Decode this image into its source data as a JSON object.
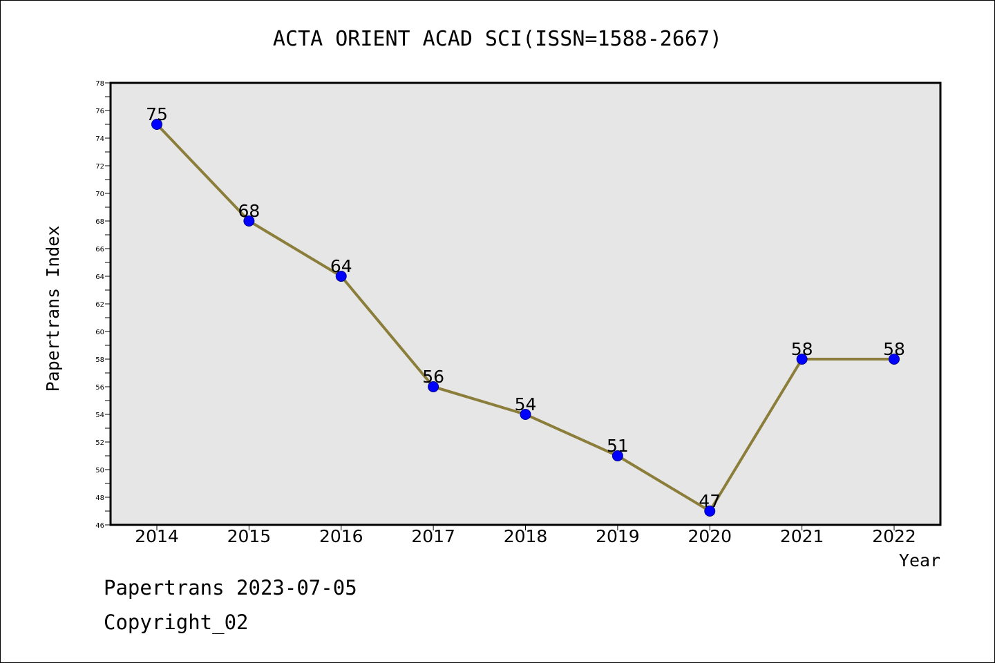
{
  "chart_data": {
    "type": "line",
    "title": "ACTA ORIENT ACAD SCI(ISSN=1588-2667)",
    "xlabel": "Year",
    "ylabel": "Papertrans Index",
    "categories": [
      "2014",
      "2015",
      "2016",
      "2017",
      "2018",
      "2019",
      "2020",
      "2021",
      "2022"
    ],
    "series": [
      {
        "values": [
          75,
          68,
          64,
          56,
          54,
          51,
          47,
          58,
          58
        ]
      }
    ],
    "data_labels": [
      "75",
      "68",
      "64",
      "56",
      "54",
      "51",
      "47",
      "58",
      "58"
    ],
    "ylim": [
      46,
      78
    ],
    "y_ticks": [
      "46",
      "48",
      "50",
      "52",
      "54",
      "56",
      "58",
      "60",
      "62",
      "64",
      "66",
      "68",
      "70",
      "72",
      "74",
      "76",
      "78"
    ],
    "grid": false,
    "legend": "none",
    "colors": {
      "line": "#8b7d3a",
      "marker": "#0000ff",
      "plot_background": "#e6e6e6"
    }
  },
  "footer": {
    "line1": "Papertrans 2023-07-05",
    "line2": "Copyright_02"
  }
}
